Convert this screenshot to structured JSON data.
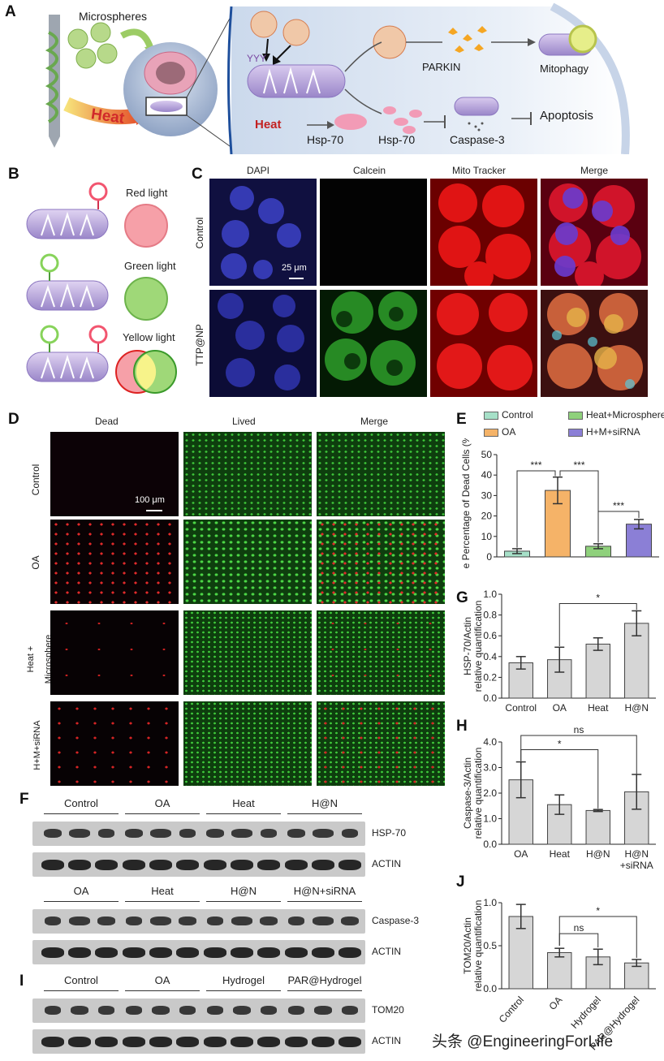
{
  "panel_labels": {
    "a": "A",
    "b": "B",
    "c": "C",
    "d": "D",
    "e": "E",
    "f": "F",
    "g": "G",
    "h": "H",
    "i": "I",
    "j": "J"
  },
  "panelA": {
    "microspheres": "Microspheres",
    "heat_left": "Heat",
    "parkin": "PARKIN",
    "mitophagy": "Mitophagy",
    "heat_inner": "Heat",
    "hsp70_a": "Hsp-70",
    "hsp70_b": "Hsp-70",
    "caspase3": "Caspase-3",
    "apoptosis": "Apoptosis"
  },
  "panelB": {
    "red": "Red light",
    "green": "Green light",
    "yellow": "Yellow light"
  },
  "panelC": {
    "cols": [
      "DAPI",
      "Calcein",
      "Mito Tracker",
      "Merge"
    ],
    "rows": [
      "Control",
      "TTP@NP"
    ],
    "scale": "25 μm"
  },
  "panelD": {
    "cols": [
      "Dead",
      "Lived",
      "Merge"
    ],
    "rows": [
      "Control",
      "OA",
      "Heat +\nMicrosphere",
      "H+M+siRNA"
    ],
    "row_lines": [
      [
        "Control"
      ],
      [
        "OA"
      ],
      [
        "Heat +",
        "Microsphere"
      ],
      [
        "H+M+siRNA"
      ]
    ],
    "scale": "100 μm"
  },
  "panelF": {
    "groups1": [
      "Control",
      "OA",
      "Heat",
      "H@N"
    ],
    "groups2": [
      "OA",
      "Heat",
      "H@N",
      "H@N+siRNA"
    ],
    "bands": [
      "HSP-70",
      "ACTIN",
      "Caspase-3",
      "ACTIN"
    ]
  },
  "panelI": {
    "groups": [
      "Control",
      "OA",
      "Hydrogel",
      "PAR@Hydrogel"
    ],
    "bands": [
      "TOM20",
      "ACTIN"
    ]
  },
  "watermark": "头条 @EngineeringForLife",
  "chart_data": [
    {
      "id": "E",
      "type": "bar",
      "categories": [
        "Control",
        "OA",
        "Heat+Microsphere",
        "H+M+siRNA"
      ],
      "values": [
        2.8,
        32.5,
        5.2,
        16.0
      ],
      "errors": [
        1.2,
        6.5,
        1.2,
        2.3
      ],
      "colors": [
        "#a6e0c8",
        "#f5b368",
        "#8fd17c",
        "#8b7fd6"
      ],
      "legend": [
        "Control",
        "Heat+Microsphere",
        "OA",
        "H+M+siRNA"
      ],
      "ylabel": "The Percentage of Dead Cells (%)",
      "ylim": [
        0,
        50
      ],
      "yticks": [
        "0",
        "10",
        "20",
        "30",
        "40",
        "50"
      ],
      "annotations": [
        "***",
        "***",
        "***"
      ]
    },
    {
      "id": "G",
      "type": "bar",
      "categories": [
        "Control",
        "OA",
        "Heat",
        "H@N"
      ],
      "values": [
        0.34,
        0.37,
        0.52,
        0.72
      ],
      "errors": [
        0.06,
        0.12,
        0.06,
        0.12
      ],
      "ylabel_lines": [
        "HSP-70/Actin",
        "relative quantification"
      ],
      "ylim": [
        0,
        1.0
      ],
      "yticks": [
        "0.0",
        "0.2",
        "0.4",
        "0.6",
        "0.8",
        "1.0"
      ],
      "annotations": [
        "*"
      ]
    },
    {
      "id": "H",
      "type": "bar",
      "categories": [
        "OA",
        "Heat",
        "H@N",
        "H@N\n+siRNA"
      ],
      "category_lines": [
        [
          "OA"
        ],
        [
          "Heat"
        ],
        [
          "H@N"
        ],
        [
          "H@N",
          "+siRNA"
        ]
      ],
      "values": [
        2.52,
        1.55,
        1.32,
        2.05
      ],
      "errors": [
        0.7,
        0.38,
        0.04,
        0.68
      ],
      "ylabel_lines": [
        "Caspase-3/Actin",
        "relative quantification"
      ],
      "ylim": [
        0,
        4.0
      ],
      "yticks": [
        "0.0",
        "1.0",
        "2.0",
        "3.0",
        "4.0"
      ],
      "annotations": [
        "ns",
        "*"
      ]
    },
    {
      "id": "J",
      "type": "bar",
      "categories": [
        "Control",
        "OA",
        "Hydrogel",
        "PAR@Hydrogel"
      ],
      "values": [
        0.84,
        0.42,
        0.37,
        0.3
      ],
      "errors": [
        0.14,
        0.05,
        0.09,
        0.04
      ],
      "ylabel_lines": [
        "TOM20/Actin",
        "relative quantification"
      ],
      "ylim": [
        0,
        1.0
      ],
      "yticks": [
        "0.0",
        "0.5",
        "1.0"
      ],
      "annotations": [
        "ns",
        "*"
      ]
    }
  ]
}
